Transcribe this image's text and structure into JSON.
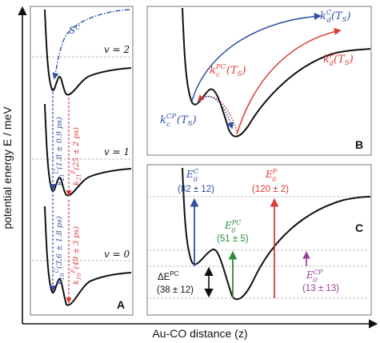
{
  "axes": {
    "y_label": "potential energy E / meV",
    "x_label": "Au-CO distance (z)"
  },
  "panel_a": {
    "letter": "A",
    "sc_label": "S",
    "sc_sup": "C",
    "levels": [
      "v = 2",
      "v = 1",
      "v = 0"
    ],
    "k21c": "k",
    "k21c_sup": "C",
    "k21c_sub": "21",
    "k21c_val": "(1.8 ± 0.9 ps)",
    "k21p": "k",
    "k21p_sup": "P",
    "k21p_sub": "21",
    "k21p_val": "(25 ± 2 ps)",
    "k10c": "k",
    "k10c_sup": "C",
    "k10c_sub": "10",
    "k10c_val": "(3.6 ± 1.8 ps)",
    "k10p": "k",
    "k10p_sup": "P",
    "k10p_sub": "10",
    "k10p_val": "(49 ± 3 ps)"
  },
  "panel_b": {
    "letter": "B",
    "kdc_k": "k",
    "kdc_sup": "C",
    "kdc_sub": "d",
    "kdc_arg": "(T",
    "kdc_argsub": "S",
    "kdc_close": ")",
    "kcpc_k": "k",
    "kcpc_sup": "PC",
    "kcpc_sub": "c",
    "kcpc_arg": "(T",
    "kcpc_argsub": "S",
    "kcpc_close": ")",
    "kdp_k": "k",
    "kdp_sup": "P",
    "kdp_sub": "d",
    "kdp_arg": "(T",
    "kdp_argsub": "S",
    "kdp_close": ")",
    "kccp_k": "k",
    "kccp_sup": "CP",
    "kccp_sub": "c",
    "kccp_arg": "(T",
    "kccp_argsub": "S",
    "kccp_close": ")"
  },
  "panel_c": {
    "letter": "C",
    "e0c": "E",
    "e0c_sup": "C",
    "e0c_sub": "0",
    "e0c_val": "(82 ± 12)",
    "e0p": "E",
    "e0p_sup": "P",
    "e0p_sub": "0",
    "e0p_val": "(120 ± 2)",
    "e0pc": "E",
    "e0pc_sup": "PC",
    "e0pc_sub": "0",
    "e0pc_val": "(51 ± 5)",
    "e0cp": "E",
    "e0cp_sup": "CP",
    "e0cp_sub": "0",
    "e0cp_val": "(13 ± 13)",
    "de_label": "ΔE",
    "de_sup": "PC",
    "de_val": "(38 ± 12)"
  },
  "colors": {
    "blue": "#2f4fa3",
    "red": "#d93b35",
    "green": "#2a8a3a",
    "purple": "#9b3b9b",
    "gray": "#b0b0b0",
    "black": "#111111"
  }
}
